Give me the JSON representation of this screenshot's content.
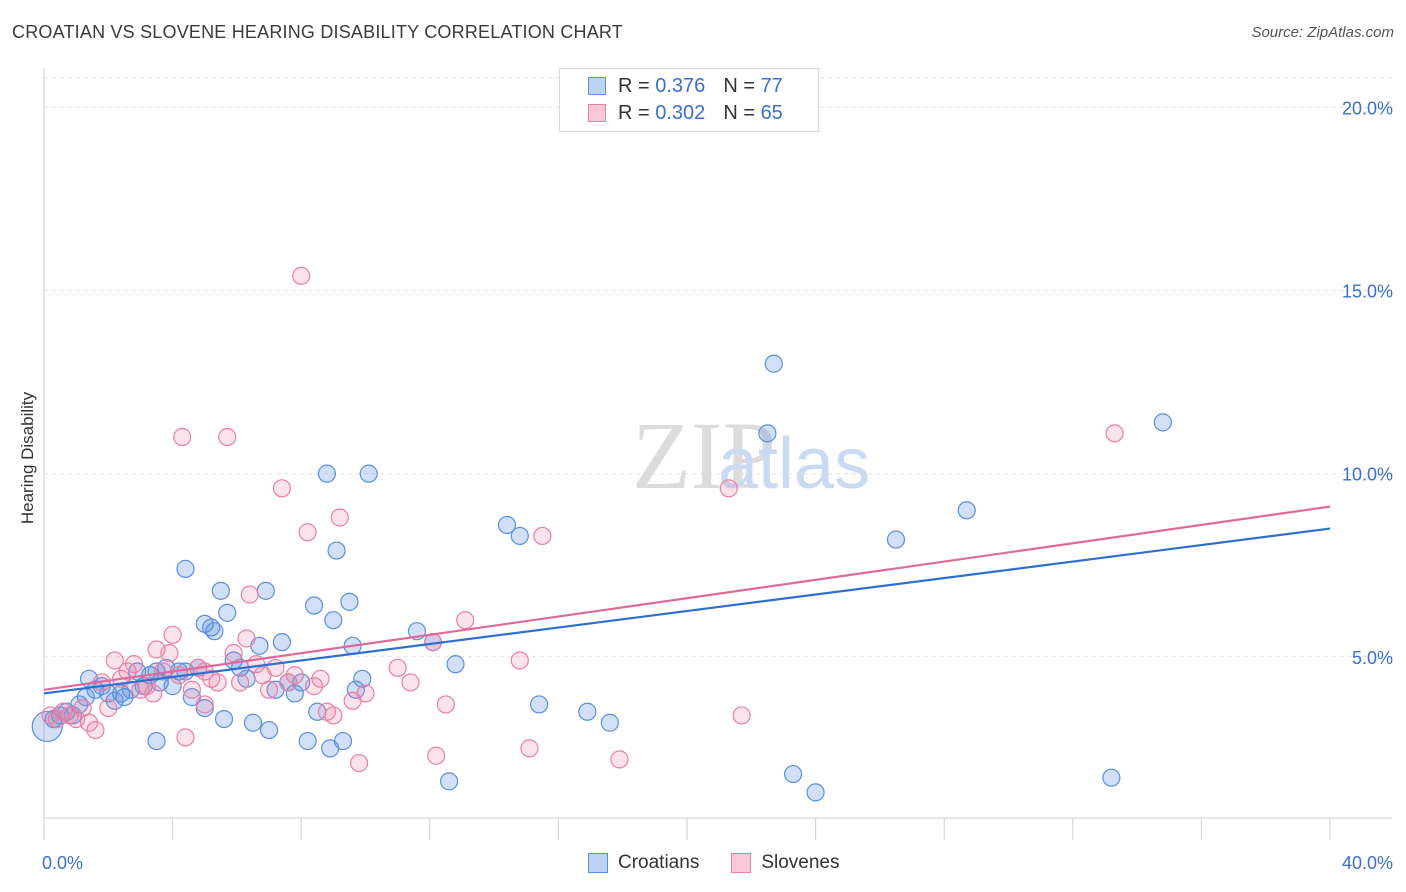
{
  "title": "CROATIAN VS SLOVENE HEARING DISABILITY CORRELATION CHART",
  "source": "Source: ZipAtlas.com",
  "watermark": {
    "zip": "ZIP",
    "atlas": "atlas"
  },
  "legend_top": {
    "rows": [
      {
        "r_label": "R =",
        "r_value": "0.376",
        "n_label": "N =",
        "n_value": "77"
      },
      {
        "r_label": "R =",
        "r_value": "0.302",
        "n_label": "N =",
        "n_value": "65"
      }
    ]
  },
  "chart_data": {
    "type": "scatter",
    "ylabel": "Hearing Disability",
    "xlim": [
      0,
      40
    ],
    "ylim": [
      0.6,
      20.8
    ],
    "x_tick_labels": [
      "0.0%",
      "40.0%"
    ],
    "y_ticks": [
      5,
      10,
      15,
      20
    ],
    "y_tick_labels": [
      "5.0%",
      "10.0%",
      "15.0%",
      "20.0%"
    ],
    "grid": "horizontal dashed",
    "legend_position": "bottom-center",
    "colors": {
      "croatians": "#5b8fe0",
      "slovenes": "#ec7fa5",
      "croatians_line": "#2f6fd0",
      "slovenes_line": "#e06a99",
      "tick_label": "#3b6fd0"
    },
    "series": [
      {
        "name": "Croatians",
        "trend": [
          [
            0,
            4.0
          ],
          [
            40,
            8.5
          ]
        ],
        "points": [
          [
            0.1,
            3.1
          ],
          [
            0.3,
            3.3
          ],
          [
            0.5,
            3.4
          ],
          [
            0.7,
            3.5
          ],
          [
            0.9,
            3.4
          ],
          [
            1.1,
            3.7
          ],
          [
            1.3,
            3.9
          ],
          [
            1.4,
            4.4
          ],
          [
            1.6,
            4.1
          ],
          [
            1.8,
            4.2
          ],
          [
            2.0,
            4.0
          ],
          [
            2.2,
            3.8
          ],
          [
            2.4,
            4.0
          ],
          [
            2.5,
            3.9
          ],
          [
            2.7,
            4.1
          ],
          [
            2.9,
            4.6
          ],
          [
            3.1,
            4.2
          ],
          [
            3.3,
            4.5
          ],
          [
            3.5,
            4.6
          ],
          [
            3.6,
            4.3
          ],
          [
            3.8,
            4.7
          ],
          [
            4.0,
            4.2
          ],
          [
            4.2,
            4.6
          ],
          [
            4.4,
            4.6
          ],
          [
            4.6,
            3.9
          ],
          [
            4.8,
            4.7
          ],
          [
            4.4,
            7.4
          ],
          [
            5.0,
            5.9
          ],
          [
            5.2,
            5.8
          ],
          [
            5.3,
            5.7
          ],
          [
            5.5,
            6.8
          ],
          [
            5.7,
            6.2
          ],
          [
            5.9,
            4.9
          ],
          [
            6.1,
            4.7
          ],
          [
            6.3,
            4.4
          ],
          [
            5.6,
            3.3
          ],
          [
            5.0,
            3.6
          ],
          [
            6.5,
            3.2
          ],
          [
            6.7,
            5.3
          ],
          [
            6.9,
            6.8
          ],
          [
            7.0,
            3.0
          ],
          [
            7.2,
            4.1
          ],
          [
            7.4,
            5.4
          ],
          [
            7.6,
            4.3
          ],
          [
            7.8,
            4.0
          ],
          [
            8.0,
            4.3
          ],
          [
            8.2,
            2.7
          ],
          [
            8.4,
            6.4
          ],
          [
            8.5,
            3.5
          ],
          [
            8.8,
            10.0
          ],
          [
            8.9,
            2.5
          ],
          [
            9.0,
            6.0
          ],
          [
            9.1,
            7.9
          ],
          [
            9.3,
            2.7
          ],
          [
            9.5,
            6.5
          ],
          [
            9.6,
            5.3
          ],
          [
            9.7,
            4.1
          ],
          [
            9.9,
            4.4
          ],
          [
            10.1,
            10.0
          ],
          [
            3.5,
            2.7
          ],
          [
            11.6,
            5.7
          ],
          [
            12.1,
            5.4
          ],
          [
            12.6,
            1.6
          ],
          [
            12.8,
            4.8
          ],
          [
            14.4,
            8.6
          ],
          [
            14.8,
            8.3
          ],
          [
            15.4,
            3.7
          ],
          [
            16.9,
            3.5
          ],
          [
            17.6,
            3.2
          ],
          [
            22.5,
            11.1
          ],
          [
            22.7,
            13.0
          ],
          [
            23.3,
            1.8
          ],
          [
            24.0,
            1.3
          ],
          [
            26.5,
            8.2
          ],
          [
            28.7,
            9.0
          ],
          [
            33.2,
            1.7
          ],
          [
            34.8,
            11.4
          ]
        ]
      },
      {
        "name": "Slovenes",
        "trend": [
          [
            0,
            4.1
          ],
          [
            40,
            9.1
          ]
        ],
        "points": [
          [
            0.2,
            3.4
          ],
          [
            0.4,
            3.3
          ],
          [
            0.6,
            3.5
          ],
          [
            0.8,
            3.4
          ],
          [
            1.0,
            3.3
          ],
          [
            1.2,
            3.6
          ],
          [
            1.4,
            3.2
          ],
          [
            1.6,
            3.0
          ],
          [
            1.8,
            4.3
          ],
          [
            2.0,
            3.6
          ],
          [
            2.2,
            4.9
          ],
          [
            2.4,
            4.4
          ],
          [
            2.6,
            4.6
          ],
          [
            2.8,
            4.8
          ],
          [
            3.0,
            4.1
          ],
          [
            3.2,
            4.2
          ],
          [
            3.4,
            4.0
          ],
          [
            3.5,
            5.2
          ],
          [
            3.7,
            4.6
          ],
          [
            3.9,
            5.1
          ],
          [
            4.0,
            5.6
          ],
          [
            4.2,
            4.5
          ],
          [
            4.4,
            2.8
          ],
          [
            4.6,
            4.1
          ],
          [
            4.8,
            4.7
          ],
          [
            5.0,
            3.7
          ],
          [
            5.2,
            4.4
          ],
          [
            5.4,
            4.3
          ],
          [
            4.3,
            11.0
          ],
          [
            5.7,
            11.0
          ],
          [
            5.9,
            5.1
          ],
          [
            6.1,
            4.3
          ],
          [
            6.3,
            5.5
          ],
          [
            6.4,
            6.7
          ],
          [
            6.6,
            4.8
          ],
          [
            6.8,
            4.5
          ],
          [
            7.0,
            4.1
          ],
          [
            7.2,
            4.7
          ],
          [
            7.4,
            9.6
          ],
          [
            7.6,
            4.3
          ],
          [
            7.8,
            4.5
          ],
          [
            8.0,
            15.4
          ],
          [
            8.2,
            8.4
          ],
          [
            8.4,
            4.2
          ],
          [
            8.6,
            4.4
          ],
          [
            8.8,
            3.5
          ],
          [
            9.0,
            3.4
          ],
          [
            9.2,
            8.8
          ],
          [
            9.6,
            3.8
          ],
          [
            9.8,
            2.1
          ],
          [
            10.0,
            4.0
          ],
          [
            11.0,
            4.7
          ],
          [
            11.4,
            4.3
          ],
          [
            12.1,
            5.4
          ],
          [
            12.5,
            3.7
          ],
          [
            12.2,
            2.3
          ],
          [
            13.1,
            6.0
          ],
          [
            14.8,
            4.9
          ],
          [
            15.1,
            2.5
          ],
          [
            15.5,
            8.3
          ],
          [
            17.9,
            2.2
          ],
          [
            21.3,
            9.6
          ],
          [
            21.7,
            3.4
          ],
          [
            33.3,
            11.1
          ],
          [
            5.0,
            4.6
          ]
        ]
      }
    ]
  }
}
